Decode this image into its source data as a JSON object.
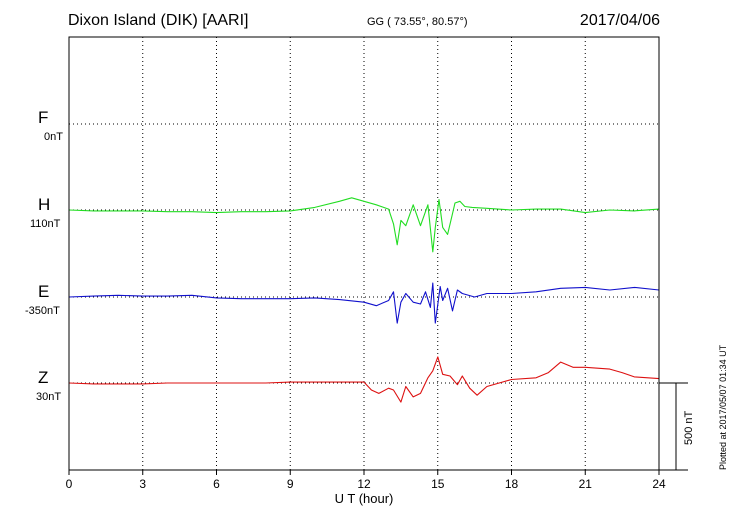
{
  "header": {
    "station": "Dixon Island (DIK)  [AARI]",
    "coords": "GG ( 73.55°,  80.57°)",
    "date": "2017/04/06"
  },
  "footer": {
    "plotted": "Plotted at 2017/05/07 01:34 UT",
    "scale": "500 nT"
  },
  "chart_data": {
    "type": "line",
    "xlabel": "U T (hour)",
    "xlim": [
      0,
      24
    ],
    "xticks": [
      0,
      3,
      6,
      9,
      12,
      15,
      18,
      21,
      24
    ],
    "grid": true,
    "scale_bar_nT": 500,
    "components": [
      {
        "name": "F",
        "baseline_label": "0nT",
        "color": "#f7a600"
      },
      {
        "name": "H",
        "baseline_label": "110nT",
        "color": "#22dd22"
      },
      {
        "name": "E",
        "baseline_label": "-350nT",
        "color": "#1010cc"
      },
      {
        "name": "Z",
        "baseline_label": "30nT",
        "color": "#dd1111"
      }
    ],
    "series": [
      {
        "name": "H",
        "color": "#22dd22",
        "x": [
          0,
          1,
          2,
          3,
          4,
          5,
          6,
          7,
          8,
          9,
          10,
          11,
          11.5,
          12,
          12.5,
          13,
          13.2,
          13.35,
          13.5,
          13.7,
          14,
          14.3,
          14.6,
          14.8,
          14.9,
          15.05,
          15.2,
          15.4,
          15.55,
          15.7,
          15.9,
          16.1,
          16.4,
          17,
          18,
          19,
          20,
          21,
          22,
          23,
          24
        ],
        "y": [
          0,
          -5,
          -5,
          -5,
          -10,
          -10,
          -15,
          -10,
          -10,
          -5,
          15,
          50,
          70,
          50,
          30,
          5,
          -80,
          -200,
          -60,
          -90,
          30,
          -90,
          30,
          -240,
          -100,
          60,
          -100,
          -140,
          -50,
          40,
          50,
          20,
          15,
          10,
          0,
          5,
          5,
          -15,
          0,
          -5,
          5
        ]
      },
      {
        "name": "E",
        "color": "#1010cc",
        "x": [
          0,
          1,
          2,
          3,
          4,
          5,
          6,
          7,
          8,
          9,
          10,
          11,
          12,
          12.5,
          13,
          13.2,
          13.35,
          13.5,
          13.7,
          14,
          14.3,
          14.5,
          14.7,
          14.8,
          14.9,
          15.1,
          15.2,
          15.4,
          15.6,
          15.8,
          16,
          16.5,
          17,
          18,
          19,
          20,
          21,
          22,
          23,
          24
        ],
        "y": [
          0,
          5,
          10,
          5,
          5,
          10,
          -5,
          -10,
          -10,
          -10,
          -5,
          -15,
          -30,
          -50,
          -20,
          30,
          -150,
          -30,
          20,
          -30,
          -40,
          30,
          -60,
          80,
          -150,
          60,
          -20,
          50,
          -80,
          40,
          20,
          0,
          20,
          20,
          30,
          50,
          55,
          40,
          55,
          40
        ]
      },
      {
        "name": "Z",
        "color": "#dd1111",
        "x": [
          0,
          1,
          2,
          3,
          4,
          5,
          6,
          7,
          8,
          9,
          10,
          11,
          12,
          12.3,
          12.6,
          13,
          13.2,
          13.5,
          13.7,
          14,
          14.3,
          14.6,
          14.8,
          15,
          15.2,
          15.5,
          15.8,
          16,
          16.3,
          16.6,
          17,
          18,
          19,
          19.5,
          20,
          20.5,
          21,
          22,
          22.5,
          23,
          24
        ],
        "y": [
          0,
          -5,
          -5,
          -5,
          0,
          0,
          0,
          0,
          0,
          5,
          5,
          5,
          5,
          -40,
          -60,
          -30,
          -40,
          -110,
          -20,
          -80,
          -60,
          30,
          70,
          150,
          50,
          40,
          -10,
          40,
          -30,
          -70,
          -20,
          20,
          30,
          60,
          120,
          90,
          90,
          80,
          60,
          35,
          25
        ]
      }
    ]
  }
}
